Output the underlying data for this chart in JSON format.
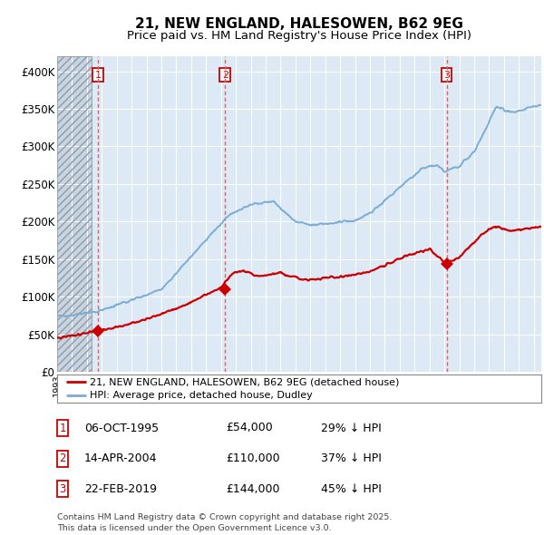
{
  "title": "21, NEW ENGLAND, HALESOWEN, B62 9EG",
  "subtitle": "Price paid vs. HM Land Registry's House Price Index (HPI)",
  "bg_color": "#ddeaf6",
  "hpi_color": "#7aadd4",
  "price_color": "#cc0000",
  "vline_color": "#e06060",
  "sale1_date_num": 1995.76,
  "sale1_price": 54000,
  "sale2_date_num": 2004.28,
  "sale2_price": 110000,
  "sale3_date_num": 2019.14,
  "sale3_price": 144000,
  "ylim_max": 420000,
  "xlim_min": 1993.0,
  "xlim_max": 2025.5,
  "legend_label_price": "21, NEW ENGLAND, HALESOWEN, B62 9EG (detached house)",
  "legend_label_hpi": "HPI: Average price, detached house, Dudley",
  "table_rows": [
    [
      "1",
      "06-OCT-1995",
      "£54,000",
      "29% ↓ HPI"
    ],
    [
      "2",
      "14-APR-2004",
      "£110,000",
      "37% ↓ HPI"
    ],
    [
      "3",
      "22-FEB-2019",
      "£144,000",
      "45% ↓ HPI"
    ]
  ],
  "footer": "Contains HM Land Registry data © Crown copyright and database right 2025.\nThis data is licensed under the Open Government Licence v3.0.",
  "yticks": [
    0,
    50000,
    100000,
    150000,
    200000,
    250000,
    300000,
    350000,
    400000
  ],
  "ytick_labels": [
    "£0",
    "£50K",
    "£100K",
    "£150K",
    "£200K",
    "£250K",
    "£300K",
    "£350K",
    "£400K"
  ],
  "hatch_end": 1995.3
}
